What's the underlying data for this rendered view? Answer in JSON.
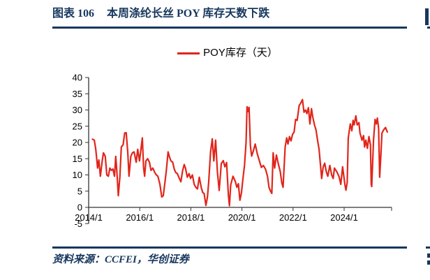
{
  "colors": {
    "navy": "#17375e",
    "red": "#e1251b",
    "axis": "#333333",
    "text": "#000000",
    "background": "#ffffff"
  },
  "header": {
    "figure_label": "图表 106",
    "figure_title": "本周涤纶长丝 POY 库存天数下跌"
  },
  "footer": {
    "source_text": "资料来源：CCFEI，华创证券"
  },
  "chart_data": {
    "type": "line",
    "title": "",
    "xlabel": "",
    "ylabel": "",
    "legend_position": "top-center",
    "grid": false,
    "ylim": [
      -5,
      40
    ],
    "xlim": [
      2014.0,
      2025.85
    ],
    "yticks": [
      40,
      35,
      30,
      25,
      20,
      15,
      10,
      5,
      0,
      -5
    ],
    "xticks": [
      {
        "label": "2014/1",
        "t": 2014.0
      },
      {
        "label": "2016/1",
        "t": 2016.0
      },
      {
        "label": "2018/1",
        "t": 2018.0
      },
      {
        "label": "2020/1",
        "t": 2020.0
      },
      {
        "label": "2022/1",
        "t": 2022.0
      },
      {
        "label": "2024/1",
        "t": 2024.0
      }
    ],
    "legend": [
      {
        "label": "POY库存（天）",
        "color": "#e1251b"
      }
    ],
    "series": [
      {
        "name": "POY库存（天）",
        "color": "#e1251b",
        "unit": "天",
        "points": [
          [
            2014.15,
            21.0
          ],
          [
            2014.22,
            20.7
          ],
          [
            2014.28,
            17.9
          ],
          [
            2014.35,
            12.1
          ],
          [
            2014.4,
            14.6
          ],
          [
            2014.46,
            9.6
          ],
          [
            2014.53,
            14.3
          ],
          [
            2014.58,
            16.8
          ],
          [
            2014.65,
            15.7
          ],
          [
            2014.71,
            10.0
          ],
          [
            2014.77,
            9.6
          ],
          [
            2014.83,
            12.1
          ],
          [
            2014.89,
            11.4
          ],
          [
            2014.95,
            11.8
          ],
          [
            2015.01,
            9.6
          ],
          [
            2015.06,
            15.7
          ],
          [
            2015.1,
            11.4
          ],
          [
            2015.16,
            3.6
          ],
          [
            2015.22,
            9.3
          ],
          [
            2015.28,
            18.6
          ],
          [
            2015.35,
            19.3
          ],
          [
            2015.41,
            22.9
          ],
          [
            2015.47,
            23.0
          ],
          [
            2015.53,
            17.1
          ],
          [
            2015.58,
            9.6
          ],
          [
            2015.65,
            15.7
          ],
          [
            2015.71,
            16.8
          ],
          [
            2015.78,
            17.1
          ],
          [
            2015.86,
            13.9
          ],
          [
            2015.92,
            17.9
          ],
          [
            2015.99,
            14.3
          ],
          [
            2016.04,
            17.5
          ],
          [
            2016.1,
            21.4
          ],
          [
            2016.15,
            12.1
          ],
          [
            2016.19,
            9.6
          ],
          [
            2016.24,
            14.3
          ],
          [
            2016.31,
            15.0
          ],
          [
            2016.38,
            13.9
          ],
          [
            2016.44,
            11.4
          ],
          [
            2016.51,
            12.1
          ],
          [
            2016.59,
            10.7
          ],
          [
            2016.65,
            10.0
          ],
          [
            2016.71,
            9.6
          ],
          [
            2016.79,
            7.1
          ],
          [
            2016.86,
            3.2
          ],
          [
            2016.92,
            3.6
          ],
          [
            2016.99,
            7.9
          ],
          [
            2017.04,
            11.4
          ],
          [
            2017.11,
            17.1
          ],
          [
            2017.17,
            15.4
          ],
          [
            2017.22,
            14.3
          ],
          [
            2017.29,
            13.9
          ],
          [
            2017.35,
            11.8
          ],
          [
            2017.41,
            10.7
          ],
          [
            2017.47,
            10.4
          ],
          [
            2017.53,
            9.3
          ],
          [
            2017.61,
            7.9
          ],
          [
            2017.68,
            11.4
          ],
          [
            2017.74,
            13.2
          ],
          [
            2017.79,
            12.1
          ],
          [
            2017.86,
            9.3
          ],
          [
            2017.93,
            10.4
          ],
          [
            2017.99,
            8.9
          ],
          [
            2018.06,
            10.0
          ],
          [
            2018.13,
            7.1
          ],
          [
            2018.2,
            6.1
          ],
          [
            2018.26,
            5.7
          ],
          [
            2018.33,
            9.3
          ],
          [
            2018.41,
            6.0
          ],
          [
            2018.47,
            4.5
          ],
          [
            2018.52,
            4.3
          ],
          [
            2018.59,
            0.6
          ],
          [
            2018.65,
            3.2
          ],
          [
            2018.7,
            7.9
          ],
          [
            2018.77,
            17.0
          ],
          [
            2018.84,
            21.1
          ],
          [
            2018.9,
            14.3
          ],
          [
            2018.97,
            20.7
          ],
          [
            2019.04,
            10.8
          ],
          [
            2019.11,
            5.2
          ],
          [
            2019.19,
            13.5
          ],
          [
            2019.27,
            14.4
          ],
          [
            2019.33,
            12.5
          ],
          [
            2019.4,
            13.8
          ],
          [
            2019.47,
            3.7
          ],
          [
            2019.51,
            0.5
          ],
          [
            2019.56,
            6.9
          ],
          [
            2019.65,
            9.6
          ],
          [
            2019.74,
            8.0
          ],
          [
            2019.8,
            6.2
          ],
          [
            2019.86,
            7.3
          ],
          [
            2019.92,
            2.2
          ],
          [
            2019.98,
            4.5
          ],
          [
            2020.04,
            9.0
          ],
          [
            2020.1,
            13.0
          ],
          [
            2020.16,
            20.0
          ],
          [
            2020.2,
            31.0
          ],
          [
            2020.24,
            29.5
          ],
          [
            2020.28,
            30.8
          ],
          [
            2020.33,
            19.0
          ],
          [
            2020.38,
            15.8
          ],
          [
            2020.45,
            17.5
          ],
          [
            2020.52,
            19.5
          ],
          [
            2020.6,
            16.5
          ],
          [
            2020.68,
            14.4
          ],
          [
            2020.76,
            12.3
          ],
          [
            2020.84,
            12.9
          ],
          [
            2020.92,
            11.8
          ],
          [
            2021.0,
            9.6
          ],
          [
            2021.06,
            6.1
          ],
          [
            2021.12,
            5.0
          ],
          [
            2021.17,
            4.3
          ],
          [
            2021.22,
            16.8
          ],
          [
            2021.28,
            12.1
          ],
          [
            2021.35,
            16.1
          ],
          [
            2021.42,
            13.5
          ],
          [
            2021.5,
            11.0
          ],
          [
            2021.56,
            7.5
          ],
          [
            2021.61,
            6.2
          ],
          [
            2021.69,
            18.6
          ],
          [
            2021.75,
            21.4
          ],
          [
            2021.8,
            19.5
          ],
          [
            2021.86,
            21.8
          ],
          [
            2021.92,
            20.5
          ],
          [
            2021.98,
            22.5
          ],
          [
            2022.04,
            23.2
          ],
          [
            2022.1,
            27.1
          ],
          [
            2022.16,
            26.8
          ],
          [
            2022.24,
            31.4
          ],
          [
            2022.3,
            32.1
          ],
          [
            2022.37,
            33.2
          ],
          [
            2022.43,
            29.3
          ],
          [
            2022.49,
            30.0
          ],
          [
            2022.54,
            28.9
          ],
          [
            2022.6,
            30.7
          ],
          [
            2022.66,
            25.7
          ],
          [
            2022.72,
            30.4
          ],
          [
            2022.77,
            27.9
          ],
          [
            2022.84,
            25.4
          ],
          [
            2022.9,
            23.9
          ],
          [
            2022.96,
            20.7
          ],
          [
            2023.02,
            17.9
          ],
          [
            2023.12,
            8.9
          ],
          [
            2023.18,
            12.5
          ],
          [
            2023.24,
            13.6
          ],
          [
            2023.3,
            11.0
          ],
          [
            2023.36,
            9.6
          ],
          [
            2023.44,
            12.9
          ],
          [
            2023.51,
            10.0
          ],
          [
            2023.57,
            8.9
          ],
          [
            2023.62,
            12.1
          ],
          [
            2023.71,
            11.0
          ],
          [
            2023.8,
            9.5
          ],
          [
            2023.87,
            7.1
          ],
          [
            2023.94,
            12.5
          ],
          [
            2024.03,
            7.0
          ],
          [
            2024.07,
            5.3
          ],
          [
            2024.12,
            7.7
          ],
          [
            2024.16,
            21.4
          ],
          [
            2024.24,
            25.7
          ],
          [
            2024.3,
            23.6
          ],
          [
            2024.35,
            26.8
          ],
          [
            2024.39,
            25.4
          ],
          [
            2024.46,
            28.2
          ],
          [
            2024.51,
            25.4
          ],
          [
            2024.58,
            26.1
          ],
          [
            2024.62,
            22.9
          ],
          [
            2024.7,
            20.7
          ],
          [
            2024.76,
            22.1
          ],
          [
            2024.8,
            18.6
          ],
          [
            2024.85,
            20.7
          ],
          [
            2024.91,
            18.2
          ],
          [
            2024.97,
            21.8
          ],
          [
            2025.03,
            19.3
          ],
          [
            2025.06,
            7.1
          ],
          [
            2025.08,
            6.4
          ],
          [
            2025.15,
            20.7
          ],
          [
            2025.21,
            27.1
          ],
          [
            2025.26,
            25.7
          ],
          [
            2025.3,
            27.5
          ],
          [
            2025.35,
            24.3
          ],
          [
            2025.39,
            9.3
          ],
          [
            2025.44,
            16.4
          ],
          [
            2025.48,
            22.9
          ],
          [
            2025.55,
            23.9
          ],
          [
            2025.62,
            24.6
          ],
          [
            2025.69,
            23.2
          ]
        ]
      }
    ]
  }
}
